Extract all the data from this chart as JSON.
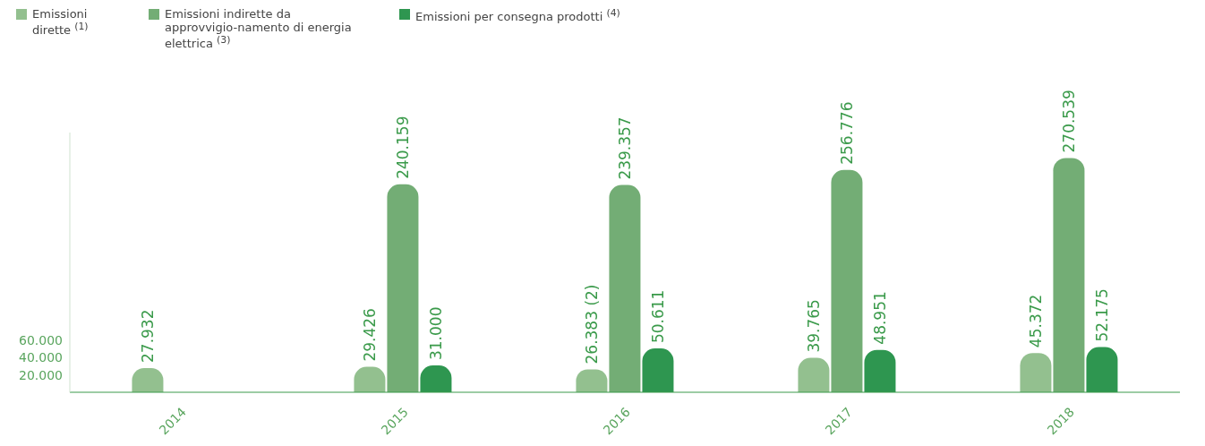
{
  "chart_data": {
    "type": "bar",
    "categories": [
      "2014",
      "2015",
      "2016",
      "2017",
      "2018"
    ],
    "series": [
      {
        "name": "Emissioni dirette $^{(1)}$",
        "color": "#93c08f",
        "values": [
          27932,
          29426,
          26383,
          39765,
          45372
        ],
        "value_labels": [
          "27.932",
          "29.426",
          "26.383 (2)",
          "39.765",
          "45.372"
        ]
      },
      {
        "name": "Emissioni indirette da approvvigio-namento di energia elettrica $^{(3)}$",
        "color": "#73ad75",
        "values": [
          null,
          240159,
          239357,
          256776,
          270539
        ],
        "value_labels": [
          null,
          "240.159",
          "239.357",
          "256.776",
          "270.539"
        ]
      },
      {
        "name": "Emissioni per consegna prodotti $^{(4)}$",
        "color": "#2e9650",
        "values": [
          null,
          31000,
          50611,
          48951,
          52175
        ],
        "value_labels": [
          null,
          "31.000",
          "50.611",
          "48.951",
          "52.175"
        ]
      }
    ],
    "ylim": [
      0,
      300000
    ],
    "yticks": [
      {
        "value": 20000,
        "label": "20.000"
      },
      {
        "value": 40000,
        "label": "40.000"
      },
      {
        "value": 60000,
        "label": "60.000"
      }
    ],
    "grid": false,
    "legend": "top left"
  }
}
